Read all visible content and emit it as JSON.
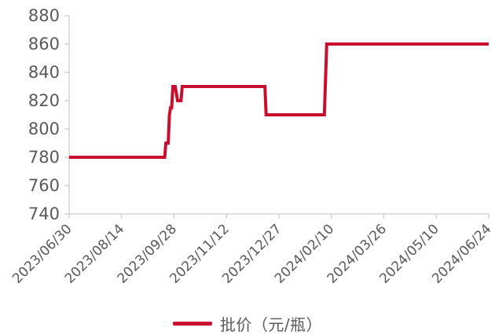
{
  "chart_data": {
    "type": "line",
    "title": "",
    "xlabel": "",
    "ylabel": "",
    "ylim": [
      740,
      880
    ],
    "yticks": [
      740,
      760,
      780,
      800,
      820,
      840,
      860,
      880
    ],
    "xticks": [
      "2023/06/30",
      "2023/08/14",
      "2023/09/28",
      "2023/11/12",
      "2023/12/27",
      "2024/02/10",
      "2024/03/26",
      "2024/05/10",
      "2024/06/24"
    ],
    "xlim": [
      "2023/06/30",
      "2024/06/24"
    ],
    "grid": false,
    "legend_position": "bottom",
    "series": [
      {
        "name": "批价（元/瓶）",
        "color": "#c8102e",
        "points": [
          [
            "2023/06/30",
            780
          ],
          [
            "2023/09/20",
            780
          ],
          [
            "2023/09/21",
            790
          ],
          [
            "2023/09/23",
            790
          ],
          [
            "2023/09/24",
            810
          ],
          [
            "2023/09/25",
            815
          ],
          [
            "2023/09/26",
            815
          ],
          [
            "2023/09/27",
            830
          ],
          [
            "2023/09/29",
            830
          ],
          [
            "2023/10/01",
            820
          ],
          [
            "2023/10/04",
            820
          ],
          [
            "2023/10/05",
            830
          ],
          [
            "2023/12/15",
            830
          ],
          [
            "2023/12/16",
            810
          ],
          [
            "2024/02/04",
            810
          ],
          [
            "2024/02/06",
            860
          ],
          [
            "2024/06/24",
            860
          ]
        ]
      }
    ]
  },
  "legend": {
    "label": "批价（元/瓶）",
    "color": "#c8102e"
  }
}
